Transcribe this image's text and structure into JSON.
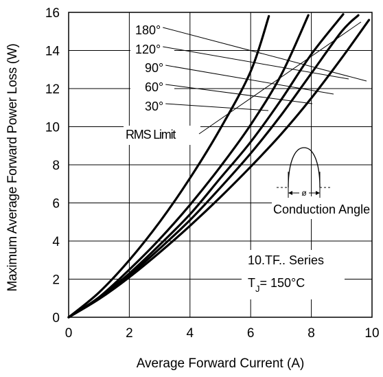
{
  "chart_data": {
    "type": "line",
    "xlabel": "Average Forward Current (A)",
    "ylabel": "Maximum Average Forward Power Loss (W)",
    "xlim": [
      0,
      10
    ],
    "ylim": [
      0,
      16
    ],
    "xticks": [
      0,
      2,
      4,
      6,
      8,
      10
    ],
    "yticks": [
      0,
      2,
      4,
      6,
      8,
      10,
      12,
      14,
      16
    ],
    "grid": true,
    "series": [
      {
        "name": "180°",
        "x": [
          0,
          1,
          2,
          3,
          4,
          5,
          6,
          7,
          8,
          9,
          9.9
        ],
        "y": [
          0,
          0.95,
          2.1,
          3.4,
          4.8,
          6.3,
          7.9,
          9.6,
          11.5,
          13.6,
          15.6
        ]
      },
      {
        "name": "120°",
        "x": [
          0,
          1,
          2,
          3,
          4,
          5,
          6,
          7,
          8,
          9,
          9.55
        ],
        "y": [
          0,
          1.0,
          2.2,
          3.6,
          5.1,
          6.8,
          8.6,
          10.6,
          12.8,
          15.0,
          15.85
        ]
      },
      {
        "name": "90°",
        "x": [
          0,
          1,
          2,
          3,
          4,
          5,
          6,
          7,
          8,
          9.05
        ],
        "y": [
          0,
          1.0,
          2.3,
          3.8,
          5.4,
          7.3,
          9.2,
          11.4,
          13.8,
          15.9
        ]
      },
      {
        "name": "60°",
        "x": [
          0,
          1,
          2,
          3,
          4,
          5,
          6,
          7,
          7.9
        ],
        "y": [
          0,
          1.05,
          2.5,
          4.1,
          5.9,
          7.9,
          10.1,
          12.7,
          15.85
        ]
      },
      {
        "name": "30°",
        "x": [
          0,
          1,
          2,
          3,
          4,
          5,
          6,
          6.6
        ],
        "y": [
          0,
          1.3,
          3.0,
          5.0,
          7.3,
          9.9,
          12.9,
          15.8
        ]
      }
    ],
    "annotations": {
      "angle_labels": [
        "180°",
        "120°",
        "90°",
        "60°",
        "30°"
      ],
      "rms_limit": "RMS Limit",
      "conduction": "Conduction Angle",
      "phi": "ø",
      "series_text": "10.TF.. Series",
      "tj_t": "T",
      "tj_sub": "J",
      "tj_rest": "= 150°C"
    }
  }
}
